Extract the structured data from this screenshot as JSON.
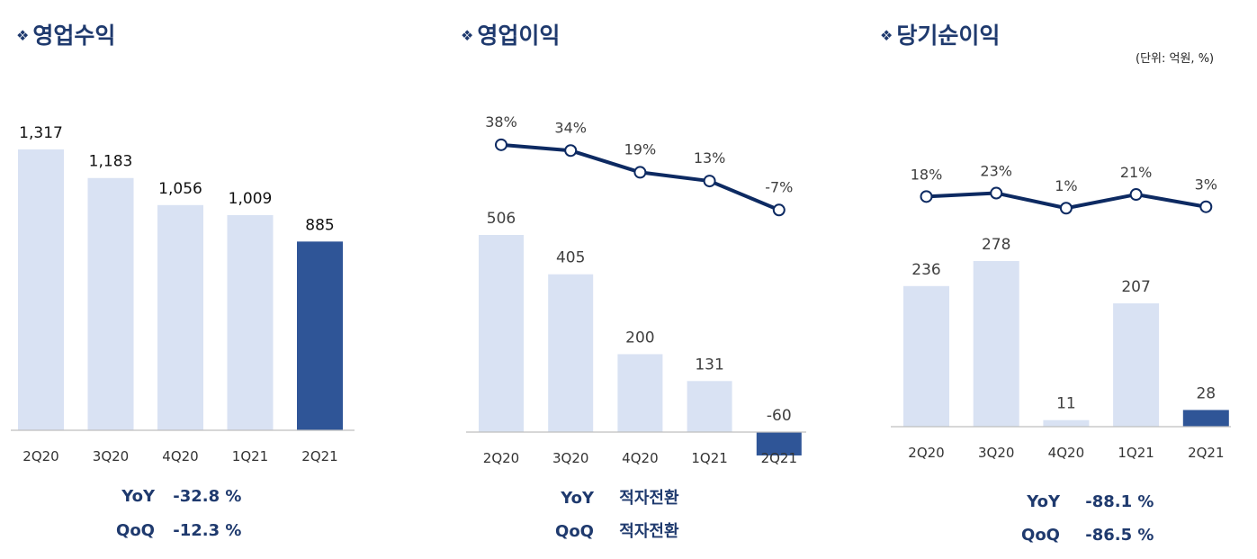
{
  "unit_note": "(단위: 억원, %)",
  "colors": {
    "bar_light": "#d9e2f3",
    "bar_dark": "#2f5597",
    "line": "#0d2a62",
    "title": "#1f3a6e",
    "axis": "#bfbfbf"
  },
  "chart_data": [
    {
      "type": "bar",
      "title": "영업수익",
      "categories": [
        "2Q20",
        "3Q20",
        "4Q20",
        "1Q21",
        "2Q21"
      ],
      "values": [
        1317,
        1183,
        1056,
        1009,
        885
      ],
      "value_labels": [
        "1,317",
        "1,183",
        "1,056",
        "1,009",
        "885"
      ],
      "highlight_index": 4,
      "stats": [
        {
          "label": "YoY",
          "value": "-32.8 %"
        },
        {
          "label": "QoQ",
          "value": "-12.3 %"
        }
      ]
    },
    {
      "type": "bar+line",
      "title": "영업이익",
      "categories": [
        "2Q20",
        "3Q20",
        "4Q20",
        "1Q21",
        "2Q21"
      ],
      "values": [
        506,
        405,
        200,
        131,
        -60
      ],
      "value_labels": [
        "506",
        "405",
        "200",
        "131",
        "-60"
      ],
      "margin_pct": [
        38,
        34,
        19,
        13,
        -7
      ],
      "margin_labels": [
        "38%",
        "34%",
        "19%",
        "13%",
        "-7%"
      ],
      "highlight_index": 4,
      "stats": [
        {
          "label": "YoY",
          "value": "적자전환"
        },
        {
          "label": "QoQ",
          "value": "적자전환"
        }
      ]
    },
    {
      "type": "bar+line",
      "title": "당기순이익",
      "categories": [
        "2Q20",
        "3Q20",
        "4Q20",
        "1Q21",
        "2Q21"
      ],
      "values": [
        236,
        278,
        11,
        207,
        28
      ],
      "value_labels": [
        "236",
        "278",
        "11",
        "207",
        "28"
      ],
      "margin_pct": [
        18,
        23,
        1,
        21,
        3
      ],
      "margin_labels": [
        "18%",
        "23%",
        "1%",
        "21%",
        "3%"
      ],
      "highlight_index": 4,
      "stats": [
        {
          "label": "YoY",
          "value": "-88.1 %"
        },
        {
          "label": "QoQ",
          "value": "-86.5 %"
        }
      ]
    }
  ]
}
